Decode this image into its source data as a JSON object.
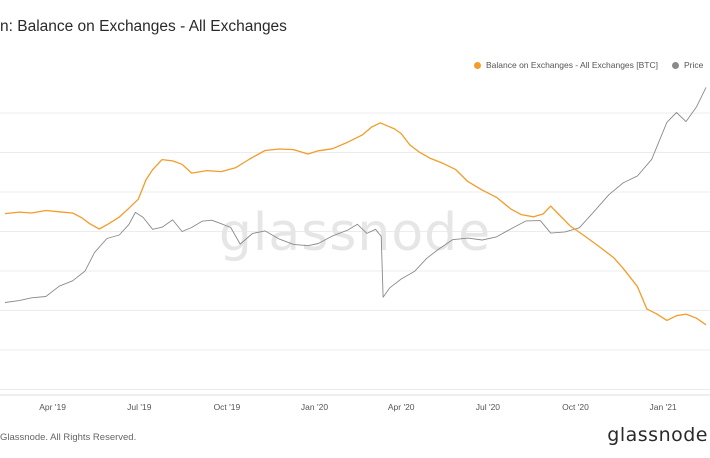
{
  "header": {
    "title": "n: Balance on Exchanges - All Exchanges"
  },
  "footer": {
    "copyright": "Glassnode. All Rights Reserved.",
    "brand": "glassnode"
  },
  "watermark": "glassnode",
  "colors": {
    "balance": "#f39c2a",
    "price": "#8a8a8a",
    "grid": "#ececec"
  },
  "chart_data": {
    "type": "line",
    "title": "n: Balance on Exchanges - All Exchanges",
    "xlabel": "",
    "ylabel": "",
    "grid": true,
    "legend_placement": "top-right",
    "x_ticks": [
      "Apr '19",
      "Jul '19",
      "Oct '19",
      "Jan '20",
      "Apr '20",
      "Jul '20",
      "Oct '20",
      "Jan '21"
    ],
    "x_range": [
      "2019-02-09",
      "2021-02-15"
    ],
    "series": [
      {
        "name": "Balance on Exchanges - All Exchanges [BTC]",
        "color": "#f39c2a",
        "axis": "left",
        "values_relative": true,
        "points": [
          [
            "2019-02-10",
            0.568
          ],
          [
            "2019-02-25",
            0.573
          ],
          [
            "2019-03-10",
            0.57
          ],
          [
            "2019-03-25",
            0.578
          ],
          [
            "2019-04-08",
            0.574
          ],
          [
            "2019-04-22",
            0.57
          ],
          [
            "2019-05-01",
            0.556
          ],
          [
            "2019-05-10",
            0.536
          ],
          [
            "2019-05-20",
            0.519
          ],
          [
            "2019-05-30",
            0.536
          ],
          [
            "2019-06-10",
            0.557
          ],
          [
            "2019-06-20",
            0.585
          ],
          [
            "2019-06-30",
            0.614
          ],
          [
            "2019-07-08",
            0.675
          ],
          [
            "2019-07-15",
            0.708
          ],
          [
            "2019-07-25",
            0.74
          ],
          [
            "2019-08-05",
            0.736
          ],
          [
            "2019-08-15",
            0.725
          ],
          [
            "2019-08-25",
            0.697
          ],
          [
            "2019-09-10",
            0.705
          ],
          [
            "2019-09-25",
            0.702
          ],
          [
            "2019-10-10",
            0.714
          ],
          [
            "2019-10-25",
            0.742
          ],
          [
            "2019-11-10",
            0.769
          ],
          [
            "2019-11-25",
            0.774
          ],
          [
            "2019-12-10",
            0.772
          ],
          [
            "2019-12-25",
            0.758
          ],
          [
            "2020-01-05",
            0.768
          ],
          [
            "2020-01-20",
            0.775
          ],
          [
            "2020-02-05",
            0.796
          ],
          [
            "2020-02-20",
            0.818
          ],
          [
            "2020-03-01",
            0.844
          ],
          [
            "2020-03-10",
            0.857
          ],
          [
            "2020-03-15",
            0.851
          ],
          [
            "2020-03-25",
            0.838
          ],
          [
            "2020-04-01",
            0.823
          ],
          [
            "2020-04-10",
            0.787
          ],
          [
            "2020-04-20",
            0.764
          ],
          [
            "2020-05-01",
            0.745
          ],
          [
            "2020-05-15",
            0.728
          ],
          [
            "2020-05-28",
            0.709
          ],
          [
            "2020-06-10",
            0.67
          ],
          [
            "2020-06-25",
            0.643
          ],
          [
            "2020-07-10",
            0.62
          ],
          [
            "2020-07-25",
            0.583
          ],
          [
            "2020-08-05",
            0.565
          ],
          [
            "2020-08-18",
            0.558
          ],
          [
            "2020-08-28",
            0.567
          ],
          [
            "2020-09-05",
            0.592
          ],
          [
            "2020-09-12",
            0.57
          ],
          [
            "2020-09-25",
            0.53
          ],
          [
            "2020-10-10",
            0.498
          ],
          [
            "2020-10-25",
            0.465
          ],
          [
            "2020-11-10",
            0.428
          ],
          [
            "2020-11-20",
            0.394
          ],
          [
            "2020-12-05",
            0.336
          ],
          [
            "2020-12-15",
            0.264
          ],
          [
            "2020-12-25",
            0.249
          ],
          [
            "2021-01-05",
            0.228
          ],
          [
            "2021-01-15",
            0.243
          ],
          [
            "2021-01-25",
            0.248
          ],
          [
            "2021-02-05",
            0.235
          ],
          [
            "2021-02-15",
            0.214
          ]
        ]
      },
      {
        "name": "Price",
        "color": "#8a8a8a",
        "axis": "right",
        "values_relative": true,
        "points": [
          [
            "2019-02-10",
            0.285
          ],
          [
            "2019-02-25",
            0.291
          ],
          [
            "2019-03-10",
            0.3
          ],
          [
            "2019-03-25",
            0.304
          ],
          [
            "2019-04-08",
            0.337
          ],
          [
            "2019-04-22",
            0.354
          ],
          [
            "2019-05-05",
            0.385
          ],
          [
            "2019-05-15",
            0.444
          ],
          [
            "2019-05-28",
            0.489
          ],
          [
            "2019-06-10",
            0.5
          ],
          [
            "2019-06-20",
            0.533
          ],
          [
            "2019-06-27",
            0.572
          ],
          [
            "2019-07-05",
            0.556
          ],
          [
            "2019-07-15",
            0.518
          ],
          [
            "2019-07-25",
            0.525
          ],
          [
            "2019-08-05",
            0.548
          ],
          [
            "2019-08-15",
            0.511
          ],
          [
            "2019-08-25",
            0.524
          ],
          [
            "2019-09-05",
            0.544
          ],
          [
            "2019-09-15",
            0.547
          ],
          [
            "2019-09-25",
            0.536
          ],
          [
            "2019-10-05",
            0.524
          ],
          [
            "2019-10-15",
            0.471
          ],
          [
            "2019-10-28",
            0.505
          ],
          [
            "2019-11-10",
            0.513
          ],
          [
            "2019-11-25",
            0.487
          ],
          [
            "2019-12-10",
            0.47
          ],
          [
            "2019-12-25",
            0.466
          ],
          [
            "2020-01-05",
            0.473
          ],
          [
            "2020-01-20",
            0.497
          ],
          [
            "2020-02-05",
            0.516
          ],
          [
            "2020-02-15",
            0.534
          ],
          [
            "2020-02-25",
            0.505
          ],
          [
            "2020-03-05",
            0.518
          ],
          [
            "2020-03-11",
            0.496
          ],
          [
            "2020-03-13",
            0.302
          ],
          [
            "2020-03-20",
            0.332
          ],
          [
            "2020-04-01",
            0.36
          ],
          [
            "2020-04-15",
            0.384
          ],
          [
            "2020-04-28",
            0.426
          ],
          [
            "2020-05-10",
            0.454
          ],
          [
            "2020-05-25",
            0.485
          ],
          [
            "2020-06-10",
            0.49
          ],
          [
            "2020-06-25",
            0.484
          ],
          [
            "2020-07-10",
            0.494
          ],
          [
            "2020-07-25",
            0.519
          ],
          [
            "2020-08-10",
            0.545
          ],
          [
            "2020-08-25",
            0.546
          ],
          [
            "2020-09-05",
            0.506
          ],
          [
            "2020-09-20",
            0.51
          ],
          [
            "2020-10-05",
            0.523
          ],
          [
            "2020-10-20",
            0.573
          ],
          [
            "2020-11-05",
            0.628
          ],
          [
            "2020-11-20",
            0.666
          ],
          [
            "2020-12-05",
            0.688
          ],
          [
            "2020-12-20",
            0.741
          ],
          [
            "2021-01-05",
            0.859
          ],
          [
            "2021-01-15",
            0.89
          ],
          [
            "2021-01-25",
            0.861
          ],
          [
            "2021-02-05",
            0.908
          ],
          [
            "2021-02-15",
            0.97
          ]
        ]
      }
    ]
  }
}
